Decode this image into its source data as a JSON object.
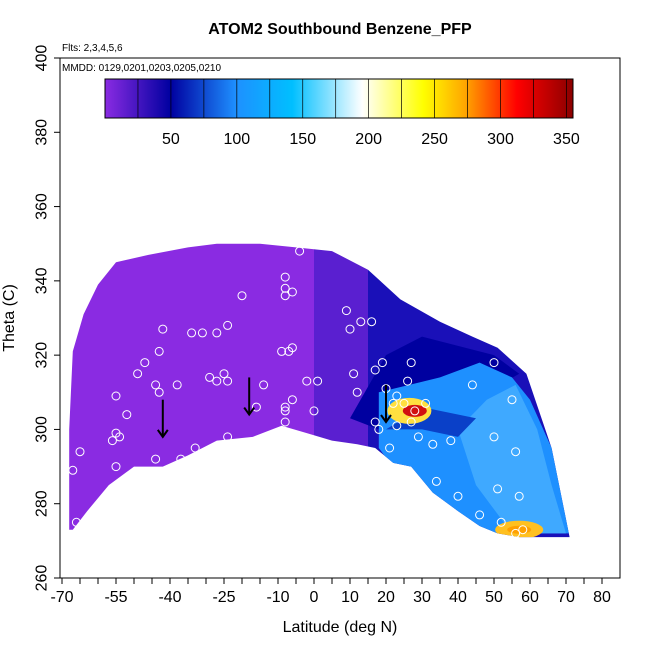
{
  "title": "ATOM2 Southbound Benzene_PFP",
  "flights_note": "Flts: 2,3,4,5,6",
  "dates_note": "MMDD: 0129,0201,0203,0205,0210",
  "chart_data": {
    "type": "heatmap",
    "title": "ATOM2 Southbound Benzene_PFP",
    "xlabel": "Latitude (deg N)",
    "ylabel": "Theta (C)",
    "xlim": [
      -70,
      80
    ],
    "ylim": [
      260,
      400
    ],
    "x_ticks": [
      -70,
      -55,
      -40,
      -25,
      -10,
      0,
      10,
      20,
      30,
      40,
      50,
      60,
      70,
      80
    ],
    "x_tick_labels": [
      "-70",
      "-55",
      "-40",
      "-25",
      "-10",
      "0",
      "10",
      "20",
      "30",
      "40",
      "50",
      "60",
      "70",
      "80"
    ],
    "y_ticks": [
      260,
      280,
      300,
      320,
      340,
      360,
      380,
      400
    ],
    "y_tick_labels": [
      "260",
      "280",
      "300",
      "320",
      "340",
      "360",
      "380",
      "400"
    ],
    "colorbar": {
      "range": [
        0,
        355
      ],
      "ticks": [
        50,
        100,
        150,
        200,
        250,
        300,
        350
      ],
      "tick_labels": [
        "50",
        "100",
        "150",
        "200",
        "250",
        "300",
        "350"
      ],
      "colors": [
        "#8a2be2",
        "#0000a0",
        "#1e90ff",
        "#00bfff",
        "#ffffff",
        "#ffff00",
        "#ffa500",
        "#ff0000",
        "#8b0000"
      ]
    },
    "grid": false,
    "legend": "colorbar top",
    "arrows_lat": [
      -42,
      -18,
      20
    ],
    "sample_points": [
      {
        "lat": -67,
        "theta": 289
      },
      {
        "lat": -66,
        "theta": 275
      },
      {
        "lat": -65,
        "theta": 294
      },
      {
        "lat": -54,
        "theta": 283
      },
      {
        "lat": -55,
        "theta": 290
      },
      {
        "lat": -56,
        "theta": 297
      },
      {
        "lat": -55,
        "theta": 299
      },
      {
        "lat": -54,
        "theta": 298
      },
      {
        "lat": -55,
        "theta": 309
      },
      {
        "lat": -52,
        "theta": 304
      },
      {
        "lat": -49,
        "theta": 315
      },
      {
        "lat": -47,
        "theta": 318
      },
      {
        "lat": -44,
        "theta": 292
      },
      {
        "lat": -43,
        "theta": 310
      },
      {
        "lat": -44,
        "theta": 312
      },
      {
        "lat": -43,
        "theta": 321
      },
      {
        "lat": -42,
        "theta": 327
      },
      {
        "lat": -37,
        "theta": 292
      },
      {
        "lat": -38,
        "theta": 312
      },
      {
        "lat": -34,
        "theta": 326
      },
      {
        "lat": -31,
        "theta": 326
      },
      {
        "lat": -29,
        "theta": 314
      },
      {
        "lat": -27,
        "theta": 313
      },
      {
        "lat": -27,
        "theta": 326
      },
      {
        "lat": -24,
        "theta": 298
      },
      {
        "lat": -24,
        "theta": 313
      },
      {
        "lat": -24,
        "theta": 328
      },
      {
        "lat": -33,
        "theta": 295
      },
      {
        "lat": -25,
        "theta": 315
      },
      {
        "lat": -20,
        "theta": 336
      },
      {
        "lat": -16,
        "theta": 306
      },
      {
        "lat": -14,
        "theta": 312
      },
      {
        "lat": -10,
        "theta": 292
      },
      {
        "lat": -8,
        "theta": 302
      },
      {
        "lat": -8,
        "theta": 305
      },
      {
        "lat": -8,
        "theta": 306
      },
      {
        "lat": -7,
        "theta": 321
      },
      {
        "lat": -8,
        "theta": 338
      },
      {
        "lat": -8,
        "theta": 341
      },
      {
        "lat": -8,
        "theta": 336
      },
      {
        "lat": -6,
        "theta": 337
      },
      {
        "lat": -6,
        "theta": 322
      },
      {
        "lat": -9,
        "theta": 321
      },
      {
        "lat": -6,
        "theta": 308
      },
      {
        "lat": -2,
        "theta": 313
      },
      {
        "lat": 0,
        "theta": 305
      },
      {
        "lat": 1,
        "theta": 313
      },
      {
        "lat": -4,
        "theta": 348
      },
      {
        "lat": 8,
        "theta": 348
      },
      {
        "lat": 9,
        "theta": 332
      },
      {
        "lat": 10,
        "theta": 327
      },
      {
        "lat": 11,
        "theta": 315
      },
      {
        "lat": 12,
        "theta": 310
      },
      {
        "lat": 12,
        "theta": 346
      },
      {
        "lat": 13,
        "theta": 329
      },
      {
        "lat": 16,
        "theta": 329
      },
      {
        "lat": 17,
        "theta": 316
      },
      {
        "lat": 17,
        "theta": 302
      },
      {
        "lat": 18,
        "theta": 300
      },
      {
        "lat": 19,
        "theta": 318
      },
      {
        "lat": 20,
        "theta": 311
      },
      {
        "lat": 21,
        "theta": 295
      },
      {
        "lat": 22,
        "theta": 307
      },
      {
        "lat": 23,
        "theta": 309
      },
      {
        "lat": 23,
        "theta": 301
      },
      {
        "lat": 25,
        "theta": 307
      },
      {
        "lat": 26,
        "theta": 313
      },
      {
        "lat": 27,
        "theta": 302
      },
      {
        "lat": 27,
        "theta": 318
      },
      {
        "lat": 28,
        "theta": 305
      },
      {
        "lat": 29,
        "theta": 298
      },
      {
        "lat": 31,
        "theta": 307
      },
      {
        "lat": 33,
        "theta": 296
      },
      {
        "lat": 34,
        "theta": 286
      },
      {
        "lat": 38,
        "theta": 297
      },
      {
        "lat": 40,
        "theta": 282
      },
      {
        "lat": 44,
        "theta": 312
      },
      {
        "lat": 46,
        "theta": 277
      },
      {
        "lat": 50,
        "theta": 318
      },
      {
        "lat": 50,
        "theta": 298
      },
      {
        "lat": 51,
        "theta": 284
      },
      {
        "lat": 52,
        "theta": 275
      },
      {
        "lat": 55,
        "theta": 308
      },
      {
        "lat": 56,
        "theta": 294
      },
      {
        "lat": 57,
        "theta": 282
      },
      {
        "lat": 58,
        "theta": 273
      },
      {
        "lat": 56,
        "theta": 272
      }
    ]
  }
}
